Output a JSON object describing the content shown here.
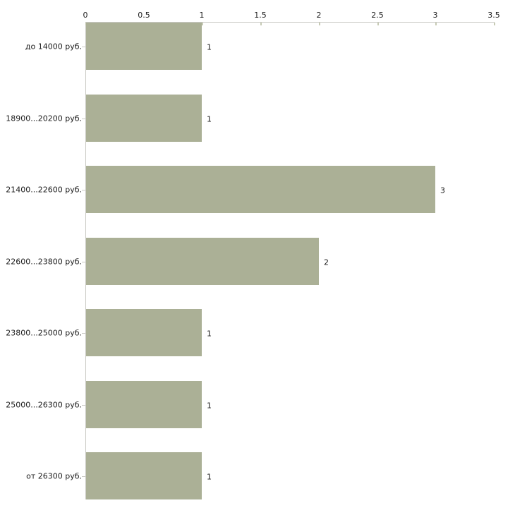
{
  "chart_data": {
    "type": "bar",
    "orientation": "horizontal",
    "title": "",
    "xlabel": "",
    "ylabel": "",
    "categories": [
      "до 14000 руб.",
      "18900...20200 руб.",
      "21400...22600 руб.",
      "22600...23800 руб.",
      "23800...25000 руб.",
      "25000...26300 руб.",
      "от 26300 руб."
    ],
    "values": [
      1,
      1,
      3,
      2,
      1,
      1,
      1
    ],
    "value_labels": [
      "1",
      "1",
      "3",
      "2",
      "1",
      "1",
      "1"
    ],
    "xlim": [
      0,
      3.5
    ],
    "x_ticks": [
      0,
      0.5,
      1,
      1.5,
      2,
      2.5,
      3,
      3.5
    ],
    "x_tick_labels": [
      "0",
      "0.5",
      "1",
      "1.5",
      "2",
      "2.5",
      "3",
      "3.5"
    ],
    "x_axis_position": "top",
    "grid": false,
    "legend": false,
    "colors": {
      "bar": "#abb096",
      "axis": "#c9c9c4",
      "tick": "#c6cab4",
      "text": "#1c1c1c"
    }
  }
}
